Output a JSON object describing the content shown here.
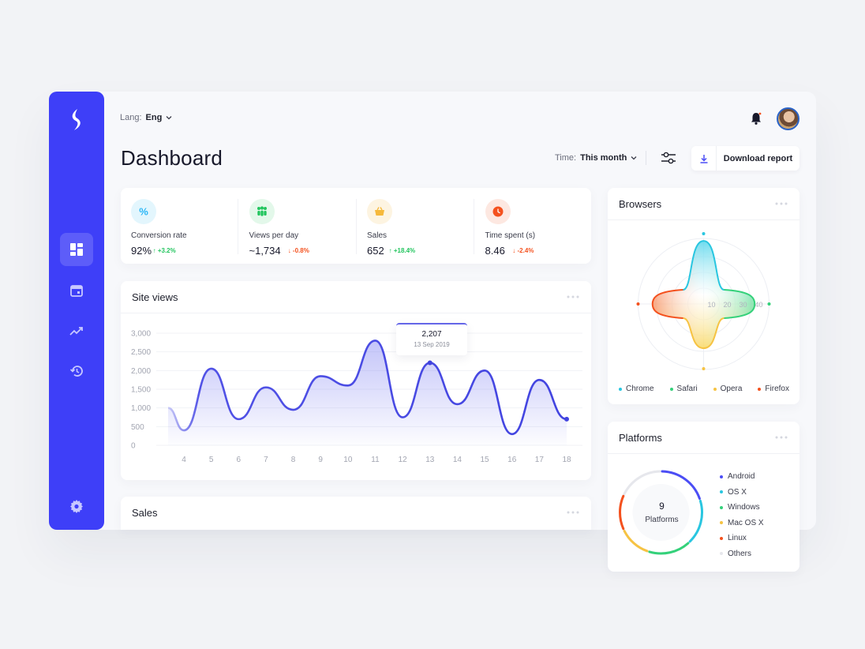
{
  "topbar": {
    "lang_label": "Lang:",
    "lang_value": "Eng"
  },
  "page": {
    "title": "Dashboard"
  },
  "toolbar": {
    "time_label": "Time:",
    "time_value": "This month",
    "download_label": "Download report"
  },
  "kpis": [
    {
      "label": "Conversion rate",
      "value": "92%",
      "change": "↑ +3.2%",
      "trend": "up",
      "icon": "percent-icon",
      "color": "#29b6f6",
      "bg": "#e3f6fd"
    },
    {
      "label": "Views per day",
      "value": "~1,734",
      "change": "↓ -0.8%",
      "trend": "down",
      "icon": "people-icon",
      "color": "#22c55e",
      "bg": "#e3f8ea"
    },
    {
      "label": "Sales",
      "value": "652",
      "change": "↑ +18.4%",
      "trend": "up",
      "icon": "basket-icon",
      "color": "#f6b93b",
      "bg": "#fdf4e1"
    },
    {
      "label": "Time spent (s)",
      "value": "8.46",
      "change": "↓ -2.4%",
      "trend": "down",
      "icon": "clock-icon",
      "color": "#f4511e",
      "bg": "#fde8e1"
    }
  ],
  "site_views": {
    "title": "Site views",
    "tooltip": {
      "value": "2,207",
      "date": "13 Sep 2019"
    }
  },
  "sales": {
    "title": "Sales"
  },
  "browsers": {
    "title": "Browsers",
    "legend": [
      {
        "name": "Chrome",
        "color": "#29c6e0"
      },
      {
        "name": "Safari",
        "color": "#34d17a"
      },
      {
        "name": "Opera",
        "color": "#f6c343"
      },
      {
        "name": "Firefox",
        "color": "#f4511e"
      }
    ]
  },
  "platforms": {
    "title": "Platforms",
    "total": "9",
    "total_label": "Platforms",
    "items": [
      {
        "name": "Android",
        "color": "#4b4df5"
      },
      {
        "name": "OS X",
        "color": "#29c6e0"
      },
      {
        "name": "Windows",
        "color": "#34d17a"
      },
      {
        "name": "Mac OS X",
        "color": "#f6c343"
      },
      {
        "name": "Linux",
        "color": "#f4511e"
      },
      {
        "name": "Others",
        "color": "#e6e7ec"
      }
    ]
  },
  "colors": {
    "brand": "#3e3ff8",
    "up": "#22c55e",
    "down": "#f4511e"
  },
  "chart_data": [
    {
      "type": "area",
      "title": "Site views",
      "x": [
        4,
        5,
        6,
        7,
        8,
        9,
        10,
        11,
        12,
        13,
        14,
        15,
        16,
        17,
        18
      ],
      "series": [
        {
          "values": [
            400,
            2050,
            700,
            1550,
            950,
            1850,
            1600,
            2800,
            750,
            2207,
            1100,
            2000,
            300,
            1750,
            700
          ]
        }
      ],
      "yticks": [
        "0",
        "500",
        "1,000",
        "1,500",
        "2,000",
        "2,500",
        "3,000"
      ],
      "ylim": [
        0,
        3000
      ],
      "grid": true
    },
    {
      "type": "radar",
      "title": "Browsers",
      "categories": [
        "Chrome",
        "Safari",
        "Opera",
        "Firefox"
      ],
      "values": [
        37,
        30,
        26,
        30
      ],
      "rticks": [
        "10",
        "20",
        "30",
        "40"
      ]
    },
    {
      "type": "pie",
      "title": "Platforms",
      "categories": [
        "Android",
        "OS X",
        "Windows",
        "Mac OS X",
        "Linux",
        "Others"
      ],
      "values": [
        20,
        18,
        17,
        13,
        14,
        18
      ]
    }
  ]
}
